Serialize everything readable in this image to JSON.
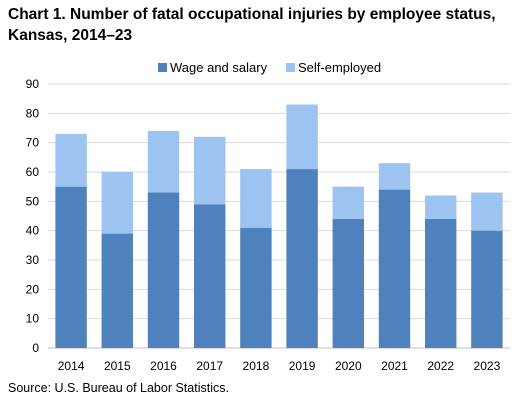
{
  "title_line1": "Chart 1. Number of fatal occupational injuries by employee status,",
  "title_line2": "Kansas, 2014–23",
  "source": "Source: U.S. Bureau of Labor Statistics.",
  "chart_data": {
    "type": "bar",
    "stacked": true,
    "categories": [
      "2014",
      "2015",
      "2016",
      "2017",
      "2018",
      "2019",
      "2020",
      "2021",
      "2022",
      "2023"
    ],
    "series": [
      {
        "name": "Wage and salary",
        "color": "#4f81bd",
        "values": [
          55,
          39,
          53,
          49,
          41,
          61,
          44,
          54,
          44,
          40
        ]
      },
      {
        "name": "Self-employed",
        "color": "#9dc3f0",
        "values": [
          18,
          21,
          21,
          23,
          20,
          22,
          11,
          9,
          8,
          13
        ]
      }
    ],
    "yticks": [
      0,
      10,
      20,
      30,
      40,
      50,
      60,
      70,
      80,
      90
    ],
    "ylim": [
      0,
      90
    ],
    "legend_position": "top",
    "grid": true
  }
}
